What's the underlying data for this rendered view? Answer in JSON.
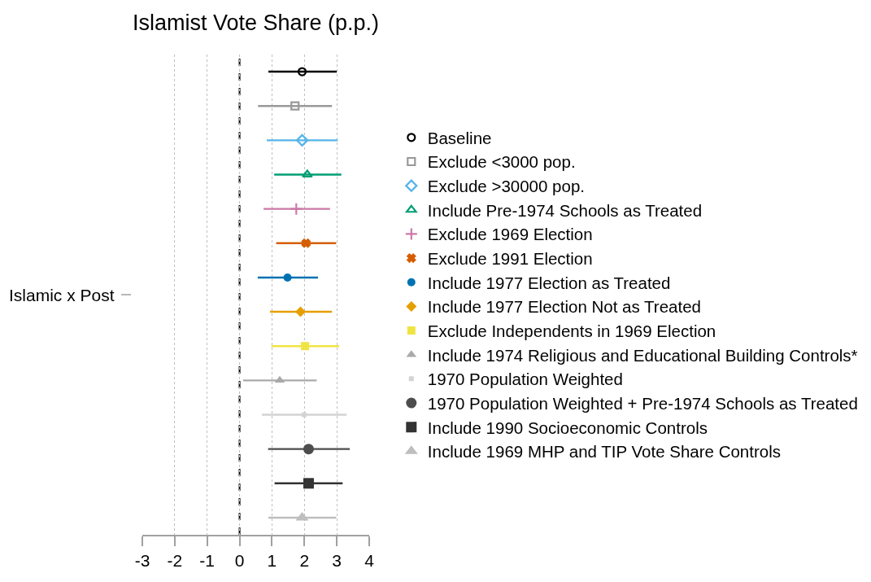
{
  "chart_data": {
    "type": "scatter",
    "orientation": "horizontal",
    "title": "Islamist Vote Share (p.p.)",
    "categories": [
      null,
      null,
      null,
      null,
      null,
      null,
      null,
      null,
      null,
      null,
      null,
      null,
      null,
      null
    ],
    "annotations": [
      "Islamic x Post"
    ],
    "xlim": [
      -3,
      4
    ],
    "xticks": [
      -3,
      -2,
      -1,
      0,
      1,
      2,
      3,
      4
    ],
    "grid": "x",
    "legend": "right",
    "ref_lines": [
      {
        "axis": "x",
        "value": 0,
        "color": "#000000",
        "line_style": "dashed"
      }
    ],
    "series": [
      {
        "name": "Baseline",
        "color": "#000000",
        "marker": "circle",
        "values": [
          1.93,
          null,
          null,
          null,
          null,
          null,
          null,
          null,
          null,
          null,
          null,
          null,
          null,
          null
        ],
        "errors": [
          [
            0.89,
            3.0
          ],
          null,
          null,
          null,
          null,
          null,
          null,
          null,
          null,
          null,
          null,
          null,
          null,
          null
        ]
      },
      {
        "name": "Exclude <3000 pop.",
        "color": "#999999",
        "marker": "square",
        "values": [
          null,
          1.71,
          null,
          null,
          null,
          null,
          null,
          null,
          null,
          null,
          null,
          null,
          null,
          null
        ],
        "errors": [
          null,
          [
            0.57,
            2.85
          ],
          null,
          null,
          null,
          null,
          null,
          null,
          null,
          null,
          null,
          null,
          null,
          null
        ]
      },
      {
        "name": "Exclude >30000 pop.",
        "color": "#56b4e9",
        "marker": "diamond",
        "values": [
          null,
          null,
          1.93,
          null,
          null,
          null,
          null,
          null,
          null,
          null,
          null,
          null,
          null,
          null
        ],
        "errors": [
          null,
          null,
          [
            0.84,
            3.03
          ],
          null,
          null,
          null,
          null,
          null,
          null,
          null,
          null,
          null,
          null,
          null
        ]
      },
      {
        "name": "Include Pre-1974 Schools as Treated",
        "color": "#009e73",
        "marker": "triangle",
        "values": [
          null,
          null,
          null,
          2.09,
          null,
          null,
          null,
          null,
          null,
          null,
          null,
          null,
          null,
          null
        ],
        "errors": [
          null,
          null,
          null,
          [
            1.07,
            3.14
          ],
          null,
          null,
          null,
          null,
          null,
          null,
          null,
          null,
          null,
          null
        ]
      },
      {
        "name": "Exclude 1969 Election",
        "color": "#cc79a7",
        "marker": "cross",
        "values": [
          null,
          null,
          null,
          null,
          1.75,
          null,
          null,
          null,
          null,
          null,
          null,
          null,
          null,
          null
        ],
        "errors": [
          null,
          null,
          null,
          null,
          [
            0.74,
            2.79
          ],
          null,
          null,
          null,
          null,
          null,
          null,
          null,
          null,
          null
        ]
      },
      {
        "name": "Exclude 1991 Election",
        "color": "#d55e00",
        "marker": "cross",
        "values": [
          null,
          null,
          null,
          null,
          null,
          2.05,
          null,
          null,
          null,
          null,
          null,
          null,
          null,
          null
        ],
        "errors": [
          null,
          null,
          null,
          null,
          null,
          [
            1.13,
            2.98
          ],
          null,
          null,
          null,
          null,
          null,
          null,
          null,
          null
        ]
      },
      {
        "name": "Include 1977 Election as Treated",
        "color": "#0072b2",
        "marker": "circle",
        "values": [
          null,
          null,
          null,
          null,
          null,
          null,
          1.48,
          null,
          null,
          null,
          null,
          null,
          null,
          null
        ],
        "errors": [
          null,
          null,
          null,
          null,
          null,
          null,
          [
            0.56,
            2.42
          ],
          null,
          null,
          null,
          null,
          null,
          null,
          null
        ]
      },
      {
        "name": "Include 1977 Election Not as Treated",
        "color": "#e69f00",
        "marker": "diamond",
        "values": [
          null,
          null,
          null,
          null,
          null,
          null,
          null,
          1.88,
          null,
          null,
          null,
          null,
          null,
          null
        ],
        "errors": [
          null,
          null,
          null,
          null,
          null,
          null,
          null,
          [
            0.94,
            2.85
          ],
          null,
          null,
          null,
          null,
          null,
          null
        ]
      },
      {
        "name": "Exclude Independents in 1969 Election",
        "color": "#f0e442",
        "marker": "square",
        "values": [
          null,
          null,
          null,
          null,
          null,
          null,
          null,
          null,
          2.02,
          null,
          null,
          null,
          null,
          null
        ],
        "errors": [
          null,
          null,
          null,
          null,
          null,
          null,
          null,
          null,
          [
            0.98,
            3.07
          ],
          null,
          null,
          null,
          null,
          null
        ]
      },
      {
        "name": "Include 1974 Religious and Educational Building Controls*",
        "color": "#aaaaaa",
        "marker": "triangle",
        "values": [
          null,
          null,
          null,
          null,
          null,
          null,
          null,
          null,
          null,
          1.24,
          null,
          null,
          null,
          null
        ],
        "errors": [
          null,
          null,
          null,
          null,
          null,
          null,
          null,
          null,
          null,
          [
            0.11,
            2.38
          ],
          null,
          null,
          null,
          null
        ]
      },
      {
        "name": "1970 Population Weighted",
        "color": "#d3d3d3",
        "marker": "square",
        "values": [
          null,
          null,
          null,
          null,
          null,
          null,
          null,
          null,
          null,
          null,
          1.99,
          null,
          null,
          null
        ],
        "errors": [
          null,
          null,
          null,
          null,
          null,
          null,
          null,
          null,
          null,
          null,
          [
            0.69,
            3.3
          ],
          null,
          null,
          null
        ]
      },
      {
        "name": "1970 Population Weighted + Pre-1974 Schools as Treated",
        "color": "#4d4d4d",
        "marker": "circle",
        "values": [
          null,
          null,
          null,
          null,
          null,
          null,
          null,
          null,
          null,
          null,
          null,
          2.13,
          null,
          null
        ],
        "errors": [
          null,
          null,
          null,
          null,
          null,
          null,
          null,
          null,
          null,
          null,
          null,
          [
            0.88,
            3.4
          ],
          null,
          null
        ]
      },
      {
        "name": "Include 1990 Socioeconomic Controls",
        "color": "#333333",
        "marker": "square",
        "values": [
          null,
          null,
          null,
          null,
          null,
          null,
          null,
          null,
          null,
          null,
          null,
          null,
          2.13,
          null
        ],
        "errors": [
          null,
          null,
          null,
          null,
          null,
          null,
          null,
          null,
          null,
          null,
          null,
          null,
          [
            1.08,
            3.18
          ],
          null
        ]
      },
      {
        "name": "Include 1969 MHP and TIP Vote Share Controls",
        "color": "#bebebe",
        "marker": "triangle",
        "values": [
          null,
          null,
          null,
          null,
          null,
          null,
          null,
          null,
          null,
          null,
          null,
          null,
          null,
          1.93
        ],
        "errors": [
          null,
          null,
          null,
          null,
          null,
          null,
          null,
          null,
          null,
          null,
          null,
          null,
          null,
          [
            0.89,
            2.98
          ]
        ]
      }
    ]
  }
}
